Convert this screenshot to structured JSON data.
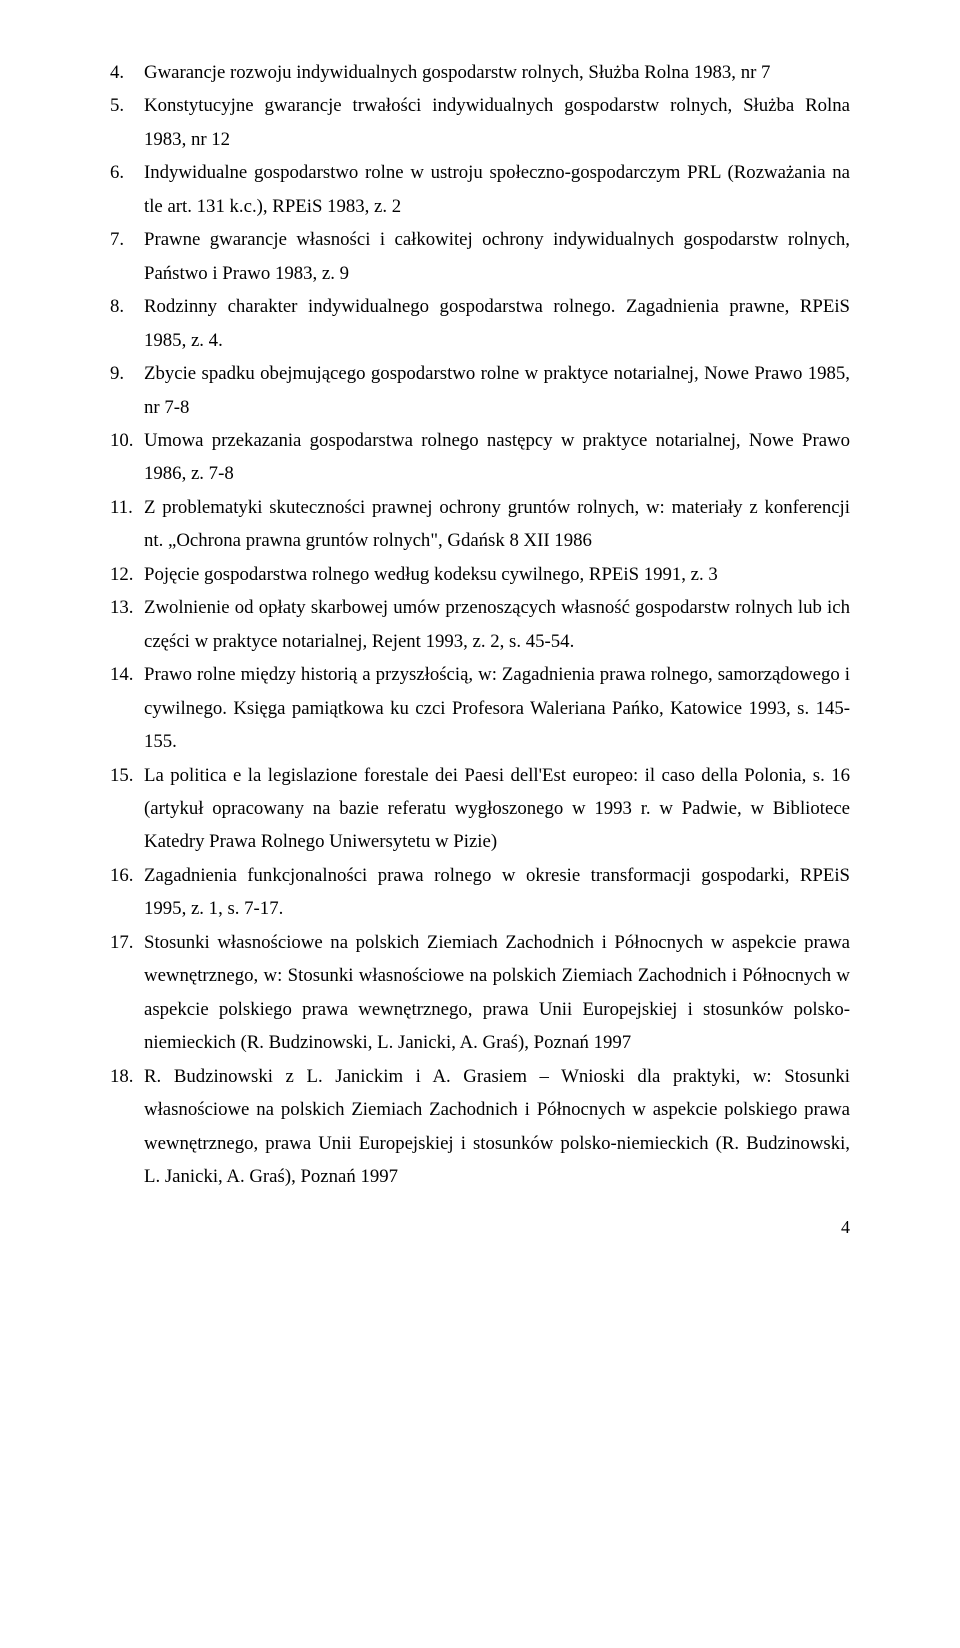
{
  "items": [
    {
      "n": "4.",
      "text": "Gwarancje rozwoju indywidualnych gospodarstw rolnych, Służba Rolna 1983, nr 7"
    },
    {
      "n": "5.",
      "text": "Konstytucyjne gwarancje trwałości indywidualnych gospodarstw rolnych, Służba Rolna 1983, nr 12"
    },
    {
      "n": "6.",
      "text": "Indywidualne gospodarstwo rolne w ustroju społeczno-gospodarczym PRL (Rozważania na tle art. 131 k.c.), RPEiS 1983, z. 2"
    },
    {
      "n": "7.",
      "text": "Prawne gwarancje własności i całkowitej ochrony indywidualnych gospodarstw rolnych, Państwo i Prawo 1983, z. 9"
    },
    {
      "n": "8.",
      "text": "Rodzinny charakter indywidualnego gospodarstwa rolnego. Zagadnienia prawne, RPEiS 1985, z. 4."
    },
    {
      "n": "9.",
      "text": "Zbycie spadku obejmującego gospodarstwo  rolne w praktyce notarialnej, Nowe Prawo 1985, nr  7-8"
    },
    {
      "n": "10.",
      "text": "Umowa przekazania gospodarstwa rolnego następcy w praktyce notarialnej, Nowe Prawo 1986, z. 7-8"
    },
    {
      "n": "11.",
      "text": "Z problematyki skuteczności prawnej ochrony gruntów rolnych, w: materiały z konferencji nt. „Ochrona prawna gruntów rolnych\", Gdańsk 8 XII 1986"
    },
    {
      "n": "12.",
      "text": "Pojęcie gospodarstwa rolnego według kodeksu cywilnego, RPEiS 1991,     z. 3"
    },
    {
      "n": "13.",
      "text": "Zwolnienie od opłaty skarbowej umów przenoszących własność gospodarstw rolnych lub ich części w praktyce notarialnej, Rejent 1993, z. 2,  s. 45-54."
    },
    {
      "n": "14.",
      "text": "Prawo rolne między historią a przyszłością, w: Zagadnienia prawa rolnego, samorządowego i cywilnego. Księga pamiątkowa ku czci Profesora Waleriana Pańko, Katowice 1993, s. 145-155."
    },
    {
      "n": "15.",
      "text": "La politica e la legislazione forestale dei Paesi dell'Est europeo: il caso della Polonia, s. 16 (artykuł opracowany na bazie referatu wygłoszonego w 1993 r. w Padwie, w Bibliotece Katedry Prawa Rolnego Uniwersytetu w Pizie)"
    },
    {
      "n": "16.",
      "text": "Zagadnienia funkcjonalności prawa rolnego w okresie transformacji gospodarki, RPEiS 1995, z. 1, s. 7-17."
    },
    {
      "n": "17.",
      "text": "Stosunki własnościowe na polskich Ziemiach Zachodnich i Północnych w aspekcie prawa wewnętrznego, w: Stosunki własnościowe na polskich Ziemiach Zachodnich i Północnych w aspekcie polskiego prawa wewnętrznego, prawa Unii Europejskiej i stosunków polsko-niemieckich (R. Budzinowski, L. Janicki, A. Graś), Poznań 1997"
    },
    {
      "n": "18.",
      "text": "R. Budzinowski z  L. Janickim i A. Grasiem – Wnioski dla praktyki, w: Stosunki własnościowe na polskich Ziemiach Zachodnich i Północnych w aspekcie polskiego prawa wewnętrznego, prawa Unii Europejskiej i stosunków polsko-niemieckich (R. Budzinowski, L. Janicki, A. Graś), Poznań 1997"
    }
  ],
  "page_number": "4"
}
